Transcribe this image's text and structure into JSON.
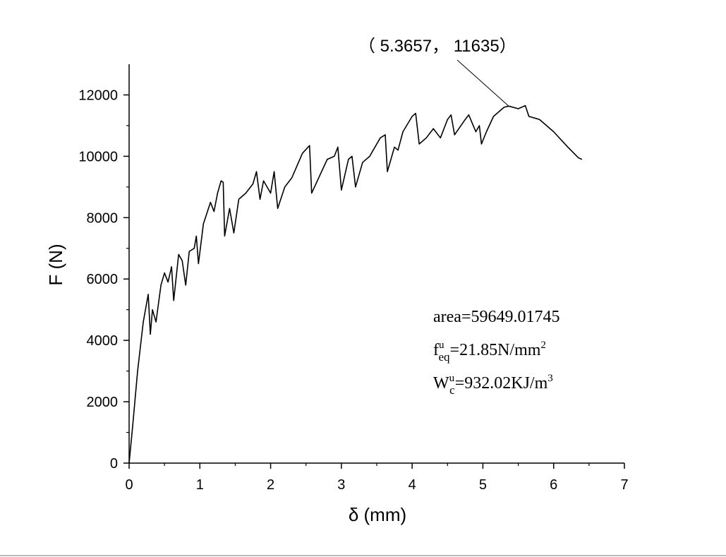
{
  "chart_data": {
    "type": "line",
    "x_label": "δ (mm)",
    "y_label": "F (N)",
    "xlim": [
      0,
      7
    ],
    "ylim": [
      0,
      13000
    ],
    "xticks": [
      0,
      1,
      2,
      3,
      4,
      5,
      6,
      7
    ],
    "yticks": [
      0,
      2000,
      4000,
      6000,
      8000,
      10000,
      12000
    ],
    "grid": false,
    "series": [
      {
        "color": "#000000",
        "x": [
          0,
          0.05,
          0.12,
          0.2,
          0.27,
          0.3,
          0.33,
          0.38,
          0.45,
          0.5,
          0.55,
          0.6,
          0.63,
          0.7,
          0.75,
          0.8,
          0.85,
          0.92,
          0.95,
          0.98,
          1.05,
          1.15,
          1.2,
          1.25,
          1.3,
          1.33,
          1.35,
          1.42,
          1.48,
          1.55,
          1.65,
          1.75,
          1.8,
          1.85,
          1.9,
          2.0,
          2.05,
          2.1,
          2.2,
          2.3,
          2.45,
          2.55,
          2.58,
          2.7,
          2.8,
          2.9,
          2.95,
          3.0,
          3.1,
          3.15,
          3.2,
          3.3,
          3.4,
          3.55,
          3.62,
          3.65,
          3.75,
          3.8,
          3.87,
          4.0,
          4.05,
          4.1,
          4.2,
          4.3,
          4.4,
          4.5,
          4.55,
          4.6,
          4.75,
          4.8,
          4.9,
          4.95,
          4.98,
          5.05,
          5.15,
          5.3,
          5.3657,
          5.5,
          5.6,
          5.65,
          5.8,
          6.0,
          6.2,
          6.35,
          6.4
        ],
        "values": [
          0,
          1200,
          3000,
          4600,
          5500,
          4200,
          5000,
          4600,
          5800,
          6200,
          5900,
          6400,
          5300,
          6800,
          6600,
          5800,
          6900,
          7000,
          7400,
          6500,
          7800,
          8500,
          8200,
          8800,
          9200,
          9150,
          7400,
          8300,
          7500,
          8600,
          8800,
          9100,
          9500,
          8600,
          9200,
          8800,
          9500,
          8300,
          9000,
          9300,
          10100,
          10350,
          8800,
          9400,
          9900,
          10000,
          10300,
          8900,
          9900,
          10000,
          9000,
          9800,
          10000,
          10600,
          10700,
          9500,
          10300,
          10200,
          10800,
          11300,
          11400,
          10400,
          10600,
          10900,
          10600,
          11200,
          11350,
          10700,
          11200,
          11350,
          10800,
          11000,
          10400,
          10800,
          11300,
          11600,
          11635,
          11550,
          11650,
          11300,
          11200,
          10800,
          10300,
          9950,
          9900
        ]
      }
    ],
    "peak_label": "（ 5.3657， 11635）",
    "peak": {
      "x": 5.3657,
      "y": 11635
    },
    "text_box": [
      {
        "base": "area=59649.01745"
      },
      {
        "base": "f",
        "sup": "u",
        "sub": "eq",
        "rest": "=21.85N/mm",
        "rest_sup": "2"
      },
      {
        "base": "W",
        "sup": "u",
        "sub": "c",
        "rest": "=932.02KJ/m",
        "rest_sup": "3"
      }
    ]
  }
}
